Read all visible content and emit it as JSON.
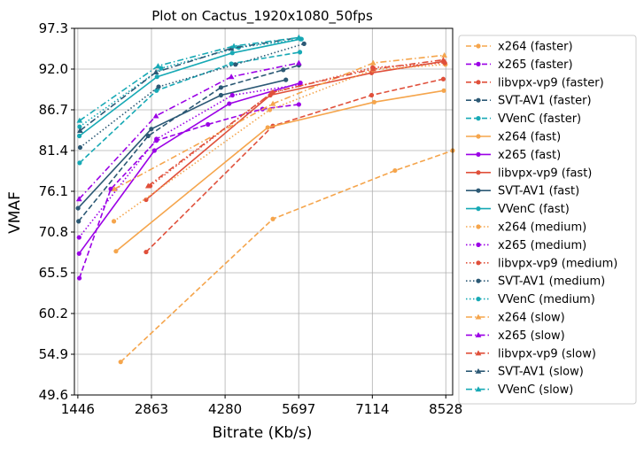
{
  "chart_data": {
    "type": "line",
    "title": "Plot on Cactus_1920x1080_50fps",
    "xlabel": "Bitrate (Kb/s)",
    "ylabel": "VMAF",
    "xlim": [
      1380,
      8660
    ],
    "ylim": [
      49.6,
      97.3
    ],
    "xticks": [
      1446,
      2863,
      4280,
      5697,
      7114,
      8528
    ],
    "xtick_labels": [
      "1446",
      "2863",
      "4280",
      "5697",
      "7114",
      "8528"
    ],
    "yticks": [
      49.6,
      54.9,
      60.2,
      65.5,
      70.8,
      76.1,
      81.4,
      86.7,
      92.0,
      97.3
    ],
    "ytick_labels": [
      "49.6",
      "54.9",
      "60.2",
      "65.5",
      "70.8",
      "76.1",
      "81.4",
      "86.7",
      "92.0",
      "97.3"
    ],
    "grid": true,
    "legend_position": "outside-right",
    "series": [
      {
        "name": "x264 (faster)",
        "color": "#f5a54c",
        "dash": "dashed",
        "marker": "circle",
        "x": [
          2270,
          5200,
          7550,
          8660
        ],
        "y": [
          53.9,
          72.5,
          78.8,
          81.4
        ]
      },
      {
        "name": "x265 (faster)",
        "color": "#9b00e6",
        "dash": "dashed",
        "marker": "circle",
        "x": [
          1475,
          2080,
          2960,
          3950,
          5000,
          5700
        ],
        "y": [
          64.8,
          76.4,
          82.7,
          84.8,
          86.8,
          87.4
        ]
      },
      {
        "name": "libvpx-vp9 (faster)",
        "color": "#e0503b",
        "dash": "dashed",
        "marker": "circle",
        "x": [
          2760,
          5200,
          7100,
          8480
        ],
        "y": [
          68.2,
          84.6,
          88.6,
          90.7
        ]
      },
      {
        "name": "SVT-AV1 (faster)",
        "color": "#2c5975",
        "dash": "dashed",
        "marker": "circle",
        "x": [
          1460,
          2800,
          4200,
          5400,
          5700
        ],
        "y": [
          72.2,
          83.3,
          89.6,
          91.9,
          92.5
        ]
      },
      {
        "name": "VVenC (faster)",
        "color": "#17a9b5",
        "dash": "dashed",
        "marker": "circle",
        "x": [
          1480,
          2960,
          4400,
          5720
        ],
        "y": [
          79.8,
          89.2,
          92.7,
          94.2
        ]
      },
      {
        "name": "x264 (fast)",
        "color": "#f5a54c",
        "dash": "solid",
        "marker": "circle",
        "x": [
          2180,
          5100,
          7150,
          8490
        ],
        "y": [
          68.3,
          84.4,
          87.7,
          89.2
        ]
      },
      {
        "name": "x265 (fast)",
        "color": "#9b00e6",
        "dash": "solid",
        "marker": "circle",
        "x": [
          1470,
          2920,
          4360,
          5730
        ],
        "y": [
          68.0,
          81.4,
          87.5,
          90.2
        ]
      },
      {
        "name": "libvpx-vp9 (fast)",
        "color": "#e0503b",
        "dash": "solid",
        "marker": "circle",
        "x": [
          2760,
          5150,
          7100,
          8490
        ],
        "y": [
          75.0,
          88.6,
          91.5,
          93.0
        ]
      },
      {
        "name": "SVT-AV1 (fast)",
        "color": "#2c5975",
        "dash": "solid",
        "marker": "circle",
        "x": [
          1450,
          2860,
          4200,
          5450
        ],
        "y": [
          73.9,
          84.2,
          88.6,
          90.6
        ]
      },
      {
        "name": "VVenC (fast)",
        "color": "#17a9b5",
        "dash": "solid",
        "marker": "circle",
        "x": [
          1475,
          2970,
          4420,
          5730
        ],
        "y": [
          83.3,
          91.0,
          94.1,
          95.9
        ]
      },
      {
        "name": "x264 (medium)",
        "color": "#f5a54c",
        "dash": "dotted",
        "marker": "circle",
        "x": [
          2140,
          5140,
          7120,
          8520
        ],
        "y": [
          72.2,
          86.7,
          91.9,
          92.6
        ]
      },
      {
        "name": "x265 (medium)",
        "color": "#9b00e6",
        "dash": "dotted",
        "marker": "circle",
        "x": [
          1470,
          2960,
          4420,
          5720
        ],
        "y": [
          70.1,
          82.9,
          88.6,
          90.0
        ]
      },
      {
        "name": "libvpx-vp9 (medium)",
        "color": "#e0503b",
        "dash": "dotted",
        "marker": "circle",
        "x": [
          2840,
          5180,
          7120,
          8510
        ],
        "y": [
          76.8,
          88.9,
          92.2,
          92.8
        ]
      },
      {
        "name": "SVT-AV1 (medium)",
        "color": "#2c5975",
        "dash": "dotted",
        "marker": "circle",
        "x": [
          1490,
          3000,
          4480,
          5800
        ],
        "y": [
          81.8,
          89.7,
          92.6,
          95.3
        ]
      },
      {
        "name": "VVenC (medium)",
        "color": "#17a9b5",
        "dash": "dotted",
        "marker": "circle",
        "x": [
          1480,
          3050,
          4540,
          5750
        ],
        "y": [
          84.5,
          92.1,
          94.8,
          95.9
        ]
      },
      {
        "name": "x264 (slow)",
        "color": "#f5a54c",
        "dash": "dashdot",
        "marker": "triangle",
        "x": [
          2150,
          5200,
          7130,
          8500
        ],
        "y": [
          76.4,
          87.5,
          92.8,
          93.8
        ]
      },
      {
        "name": "x265 (slow)",
        "color": "#9b00e6",
        "dash": "dashdot",
        "marker": "triangle",
        "x": [
          1470,
          2950,
          4400,
          5700
        ],
        "y": [
          75.1,
          85.9,
          91.0,
          92.8
        ]
      },
      {
        "name": "libvpx-vp9 (slow)",
        "color": "#e0503b",
        "dash": "dashdot",
        "marker": "triangle",
        "x": [
          2800,
          5200,
          7130,
          8480
        ],
        "y": [
          76.8,
          89.0,
          92.0,
          93.2
        ]
      },
      {
        "name": "SVT-AV1 (slow)",
        "color": "#2c5975",
        "dash": "dashdot",
        "marker": "triangle",
        "x": [
          1490,
          2950,
          4400,
          5700
        ],
        "y": [
          84.0,
          91.6,
          94.7,
          96.1
        ]
      },
      {
        "name": "VVenC (slow)",
        "color": "#17a9b5",
        "dash": "dashdot",
        "marker": "triangle",
        "x": [
          1480,
          2990,
          4450,
          5700
        ],
        "y": [
          85.3,
          92.4,
          95.0,
          96.1
        ]
      }
    ]
  }
}
